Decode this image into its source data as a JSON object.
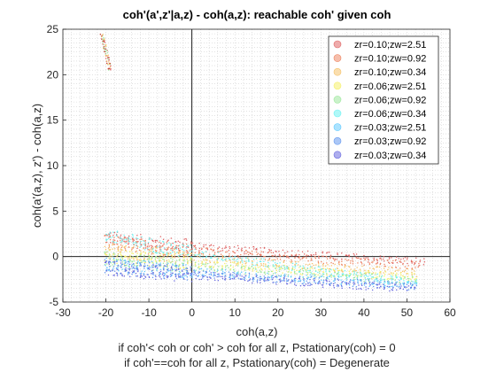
{
  "chart_data": {
    "type": "scatter",
    "title": "coh'(a',z'|a,z) - coh(a,z): reachable coh' given coh",
    "xlabel": "coh(a,z)",
    "ylabel": "coh(a'(a,z), z') - coh(a,z)",
    "xlim": [
      -30,
      60
    ],
    "ylim": [
      -5,
      25
    ],
    "xticks": [
      -30,
      -20,
      -10,
      0,
      10,
      20,
      30,
      40,
      50,
      60
    ],
    "yticks": [
      -5,
      0,
      5,
      10,
      15,
      20,
      25
    ],
    "xtick_labels": [
      "-30",
      "-20",
      "-10",
      "0",
      "10",
      "20",
      "30",
      "40",
      "50",
      "60"
    ],
    "ytick_labels": [
      "-5",
      "0",
      "5",
      "10",
      "15",
      "20",
      "25"
    ],
    "grid": "minor-dotted",
    "reference_lines": {
      "x": 0,
      "y": 0
    },
    "legend_position": "top-right",
    "notes": [
      "if coh'< coh or coh' > coh for all z, Pstationary(coh) = 0",
      "if coh'==coh for all z, Pstationary(coh) = Degenerate"
    ],
    "series": [
      {
        "name": "zr=0.10;zw=2.51",
        "color": "#e06666",
        "x_range": [
          -20,
          54
        ],
        "y_start": 2.1,
        "y_end": -0.6
      },
      {
        "name": "zr=0.10;zw=0.92",
        "color": "#ee8866",
        "x_range": [
          -20,
          53
        ],
        "y_start": 1.6,
        "y_end": -1.0
      },
      {
        "name": "zr=0.10;zw=0.34",
        "color": "#f5c26b",
        "x_range": [
          -20,
          52
        ],
        "y_start": 0.8,
        "y_end": -1.8
      },
      {
        "name": "zr=0.06;zw=2.51",
        "color": "#f5f06b",
        "x_range": [
          -20,
          52
        ],
        "y_start": 0.2,
        "y_end": -2.3
      },
      {
        "name": "zr=0.06;zw=0.92",
        "color": "#9ee89e",
        "x_range": [
          -20,
          52
        ],
        "y_start": -0.2,
        "y_end": -2.6
      },
      {
        "name": "zr=0.06;zw=0.34",
        "color": "#6ef2f2",
        "x_range": [
          -20,
          52
        ],
        "y_start": 2.4,
        "y_end": -2.9
      },
      {
        "name": "zr=0.03;zw=2.51",
        "color": "#66ccff",
        "x_range": [
          -20,
          52
        ],
        "y_start": -0.8,
        "y_end": -3.1
      },
      {
        "name": "zr=0.03;zw=0.92",
        "color": "#6699ee",
        "x_range": [
          -20,
          52
        ],
        "y_start": -1.0,
        "y_end": -3.3
      },
      {
        "name": "zr=0.03;zw=0.34",
        "color": "#6b6be0",
        "x_range": [
          -20,
          52
        ],
        "y_start": -1.2,
        "y_end": -3.5
      }
    ],
    "outlier_cluster": {
      "x_range": [
        -21,
        -19
      ],
      "y_range": [
        20.5,
        24.5
      ],
      "colors": [
        "#c0392b",
        "#e06666",
        "#9ee89e",
        "#f5c26b"
      ]
    }
  }
}
